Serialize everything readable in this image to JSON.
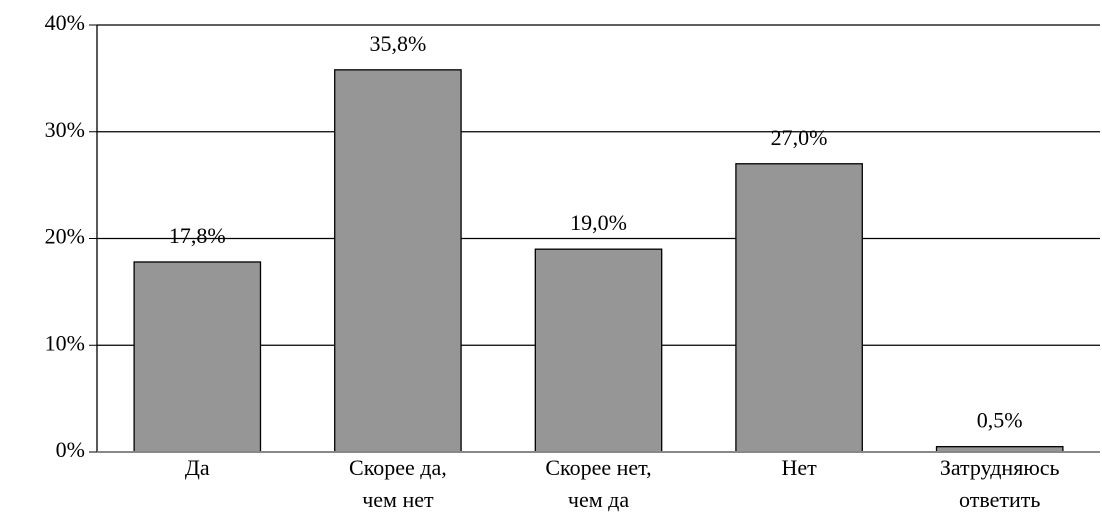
{
  "chart_data": {
    "type": "bar",
    "categories": [
      "Да",
      "Скорее да,\nчем нет",
      "Скорее нет,\nчем да",
      "Нет",
      "Затрудняюсь\nответить"
    ],
    "values": [
      17.8,
      35.8,
      19.0,
      27.0,
      0.5
    ],
    "value_labels": [
      "17,8%",
      "35,8%",
      "19,0%",
      "27,0%",
      "0,5%"
    ],
    "color": "#969696",
    "ylim": [
      0,
      40
    ],
    "yticks": [
      {
        "value": 0,
        "label": "0%"
      },
      {
        "value": 10,
        "label": "10%"
      },
      {
        "value": 20,
        "label": "20%"
      },
      {
        "value": 30,
        "label": "30%"
      },
      {
        "value": 40,
        "label": "40%"
      }
    ],
    "grid": true
  }
}
